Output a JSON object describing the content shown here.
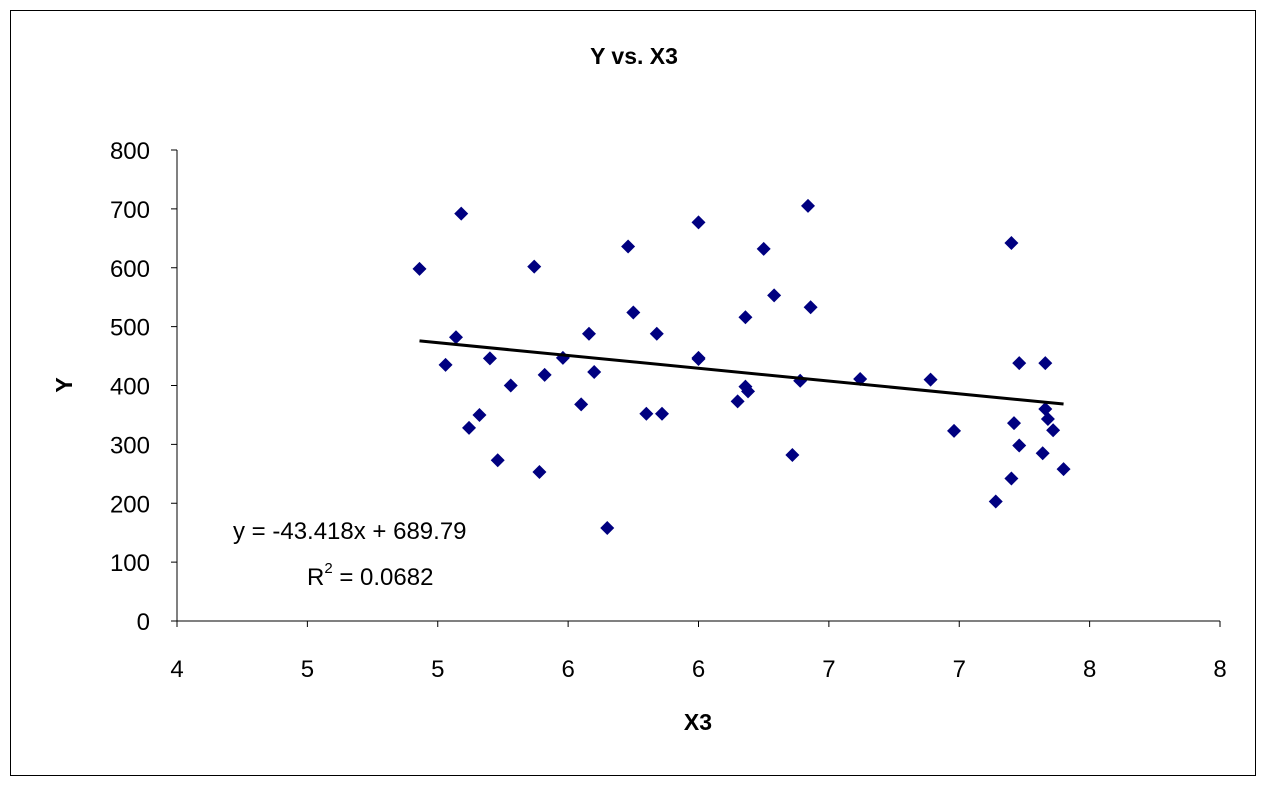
{
  "chart_data": {
    "type": "scatter",
    "title": "Y vs. X3",
    "xlabel": "X3",
    "ylabel": "Y",
    "xlim": [
      4,
      8
    ],
    "ylim": [
      0,
      800
    ],
    "x_ticks": [
      4,
      4.5,
      5,
      5.5,
      6,
      6.5,
      7,
      7.5,
      8
    ],
    "x_tick_labels": [
      "4",
      "5",
      "5",
      "6",
      "6",
      "7",
      "7",
      "8",
      "8"
    ],
    "y_ticks": [
      0,
      100,
      200,
      300,
      400,
      500,
      600,
      700,
      800
    ],
    "y_tick_labels": [
      "0",
      "100",
      "200",
      "300",
      "400",
      "500",
      "600",
      "700",
      "800"
    ],
    "grid": false,
    "legend": "none",
    "marker_color": "#000080",
    "line_color": "#000000",
    "series": [
      {
        "points": [
          [
            4.93,
            598
          ],
          [
            5.03,
            435
          ],
          [
            5.07,
            482
          ],
          [
            5.09,
            692
          ],
          [
            5.12,
            328
          ],
          [
            5.16,
            350
          ],
          [
            5.2,
            446
          ],
          [
            5.23,
            273
          ],
          [
            5.28,
            400
          ],
          [
            5.39,
            253
          ],
          [
            5.41,
            418
          ],
          [
            5.37,
            602
          ],
          [
            5.48,
            447
          ],
          [
            5.55,
            368
          ],
          [
            5.58,
            488
          ],
          [
            5.6,
            423
          ],
          [
            5.65,
            158
          ],
          [
            5.73,
            636
          ],
          [
            5.75,
            524
          ],
          [
            5.8,
            352
          ],
          [
            5.84,
            488
          ],
          [
            5.86,
            352
          ],
          [
            6.0,
            447
          ],
          [
            6.0,
            445
          ],
          [
            6.0,
            677
          ],
          [
            6.15,
            373
          ],
          [
            6.18,
            516
          ],
          [
            6.18,
            398
          ],
          [
            6.19,
            390
          ],
          [
            6.25,
            632
          ],
          [
            6.29,
            553
          ],
          [
            6.36,
            282
          ],
          [
            6.39,
            408
          ],
          [
            6.42,
            705
          ],
          [
            6.43,
            533
          ],
          [
            6.62,
            411
          ],
          [
            6.89,
            410
          ],
          [
            6.98,
            323
          ],
          [
            7.14,
            203
          ],
          [
            7.2,
            642
          ],
          [
            7.2,
            242
          ],
          [
            7.21,
            336
          ],
          [
            7.23,
            438
          ],
          [
            7.23,
            298
          ],
          [
            7.32,
            285
          ],
          [
            7.33,
            438
          ],
          [
            7.33,
            360
          ],
          [
            7.34,
            343
          ],
          [
            7.36,
            324
          ],
          [
            7.4,
            258
          ]
        ]
      }
    ],
    "trendline": {
      "x_range": [
        4.93,
        7.4
      ],
      "slope": -43.418,
      "intercept": 689.79
    },
    "annotations": {
      "equation": "y = -43.418x + 689.79",
      "r2_base": "R",
      "r2_exp": "2",
      "r2_value": " = 0.0682"
    }
  }
}
